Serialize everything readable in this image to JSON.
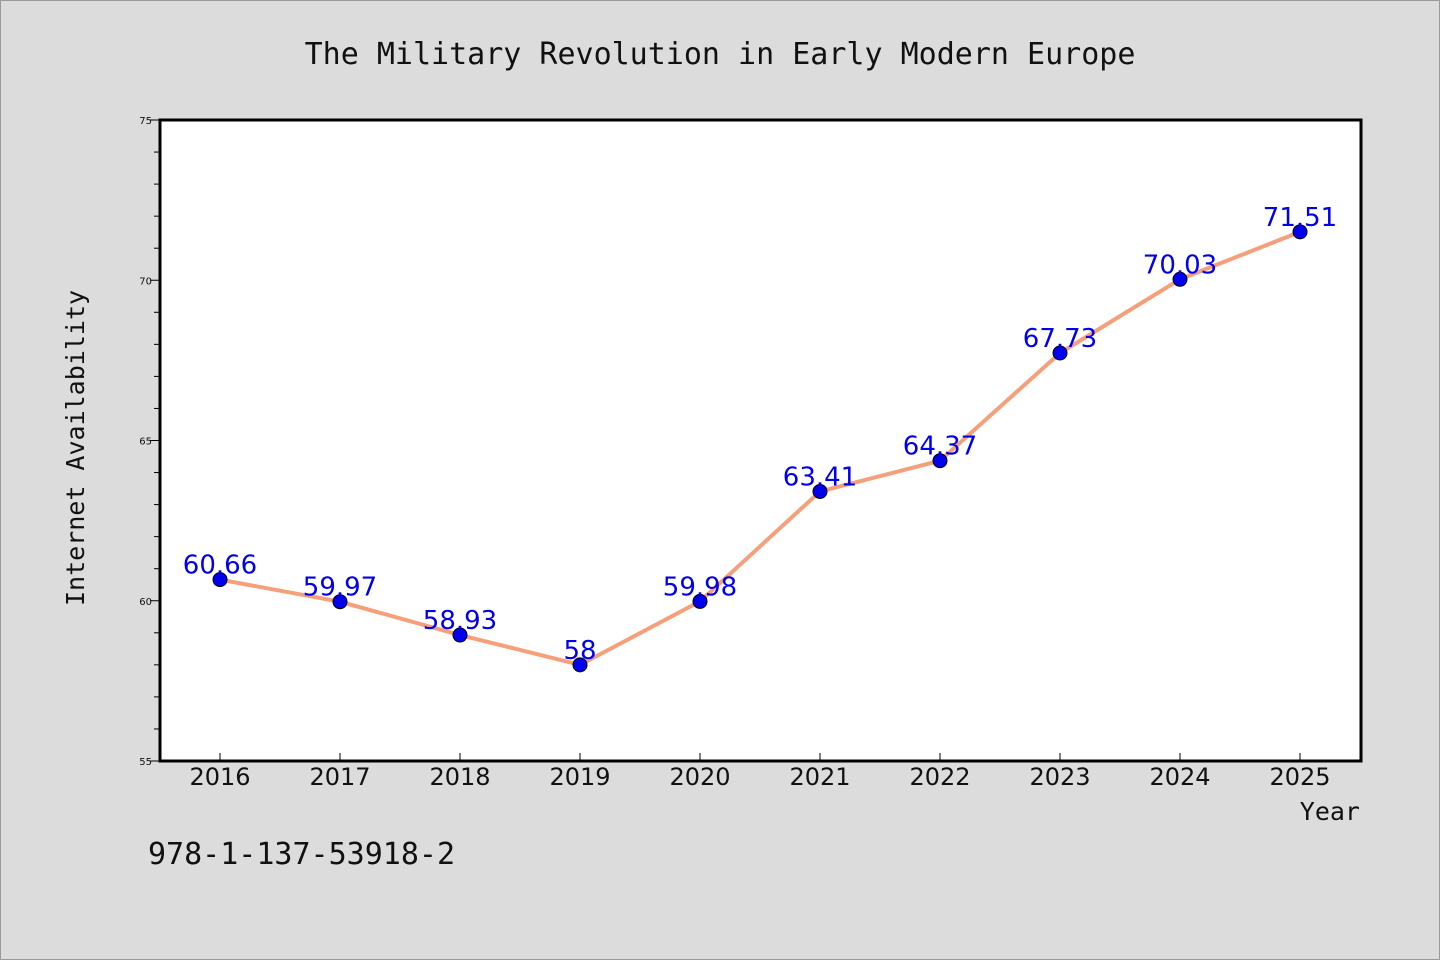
{
  "chart_data": {
    "type": "line",
    "title": "The Military Revolution in Early Modern Europe",
    "xlabel": "Year",
    "ylabel": "Internet Availability",
    "categories": [
      "2016",
      "2017",
      "2018",
      "2019",
      "2020",
      "2021",
      "2022",
      "2023",
      "2024",
      "2025"
    ],
    "series": [
      {
        "values": [
          60.66,
          59.97,
          58.93,
          58,
          59.98,
          63.41,
          64.37,
          67.73,
          70.03,
          71.51
        ],
        "data_labels": [
          "60.66",
          "59.97",
          "58.93",
          "58",
          "59.98",
          "63.41",
          "64.37",
          "67.73",
          "70.03",
          "71.51"
        ],
        "line_color": "#f5a07a",
        "marker_color": "#0000ee",
        "label_color": "#0000ee"
      }
    ],
    "ylim": [
      55,
      75
    ],
    "yticks": [
      "55",
      "60",
      "65",
      "70",
      "75"
    ],
    "grid": false,
    "legend": "none"
  },
  "footer_text": "978-1-137-53918-2"
}
